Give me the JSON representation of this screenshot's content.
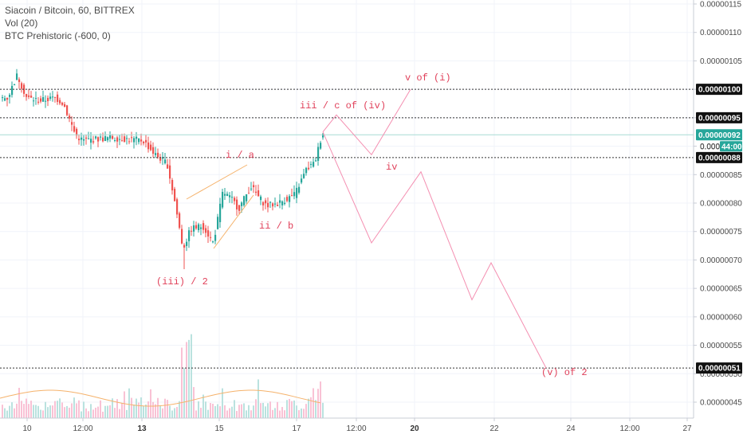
{
  "legend": {
    "title": "Siacoin / Bitcoin, 60, BITTREX",
    "vol": "Vol (20)",
    "indicator": "BTC Prehistoric (-600, 0)"
  },
  "chart_data": {
    "type": "line",
    "y_ticks": [
      "0.00000045",
      "0.00000050",
      "0.00000055",
      "0.00000060",
      "0.00000065",
      "0.00000070",
      "0.00000075",
      "0.00000080",
      "0.00000085",
      "0.00000090",
      "0.00000095",
      "0.00000100",
      "0.00000105",
      "0.00000110",
      "0.00000115"
    ],
    "x_ticks": [
      {
        "label": "10",
        "bold": false
      },
      {
        "label": "12:00",
        "bold": false
      },
      {
        "label": "13",
        "bold": true
      },
      {
        "label": "15",
        "bold": false
      },
      {
        "label": "17",
        "bold": false
      },
      {
        "label": "12:00",
        "bold": false
      },
      {
        "label": "20",
        "bold": true
      },
      {
        "label": "22",
        "bold": false
      },
      {
        "label": "24",
        "bold": false
      },
      {
        "label": "12:00",
        "bold": false
      },
      {
        "label": "27",
        "bold": false
      }
    ],
    "horizontal_levels": [
      {
        "label": "0.00000100",
        "value": 1.0
      },
      {
        "label": "0.00000095",
        "value": 0.95
      },
      {
        "label": "0.00000088",
        "value": 0.88
      },
      {
        "label": "0.00000051",
        "value": 0.51
      }
    ],
    "current_price": {
      "label": "0.00000092",
      "value": 0.92
    },
    "countdown": {
      "label": "0.000",
      "time": "44:00"
    },
    "wave_labels": [
      "v of (i)",
      "iii / c of (iv)",
      "i / a",
      "iv",
      "ii / b",
      "(iii) / 2",
      "(v) of 2"
    ],
    "projection_path": [
      0.955,
      0.92,
      0.885,
      1.0,
      0.955,
      0.73,
      0.855,
      0.63,
      0.695,
      0.51
    ],
    "colors": {
      "up": "#26a69a",
      "down": "#ef5350",
      "projection": "#f48fb1",
      "wave_text": "#e0405a",
      "channel": "#f5b26b",
      "current": "#26a69a"
    }
  }
}
